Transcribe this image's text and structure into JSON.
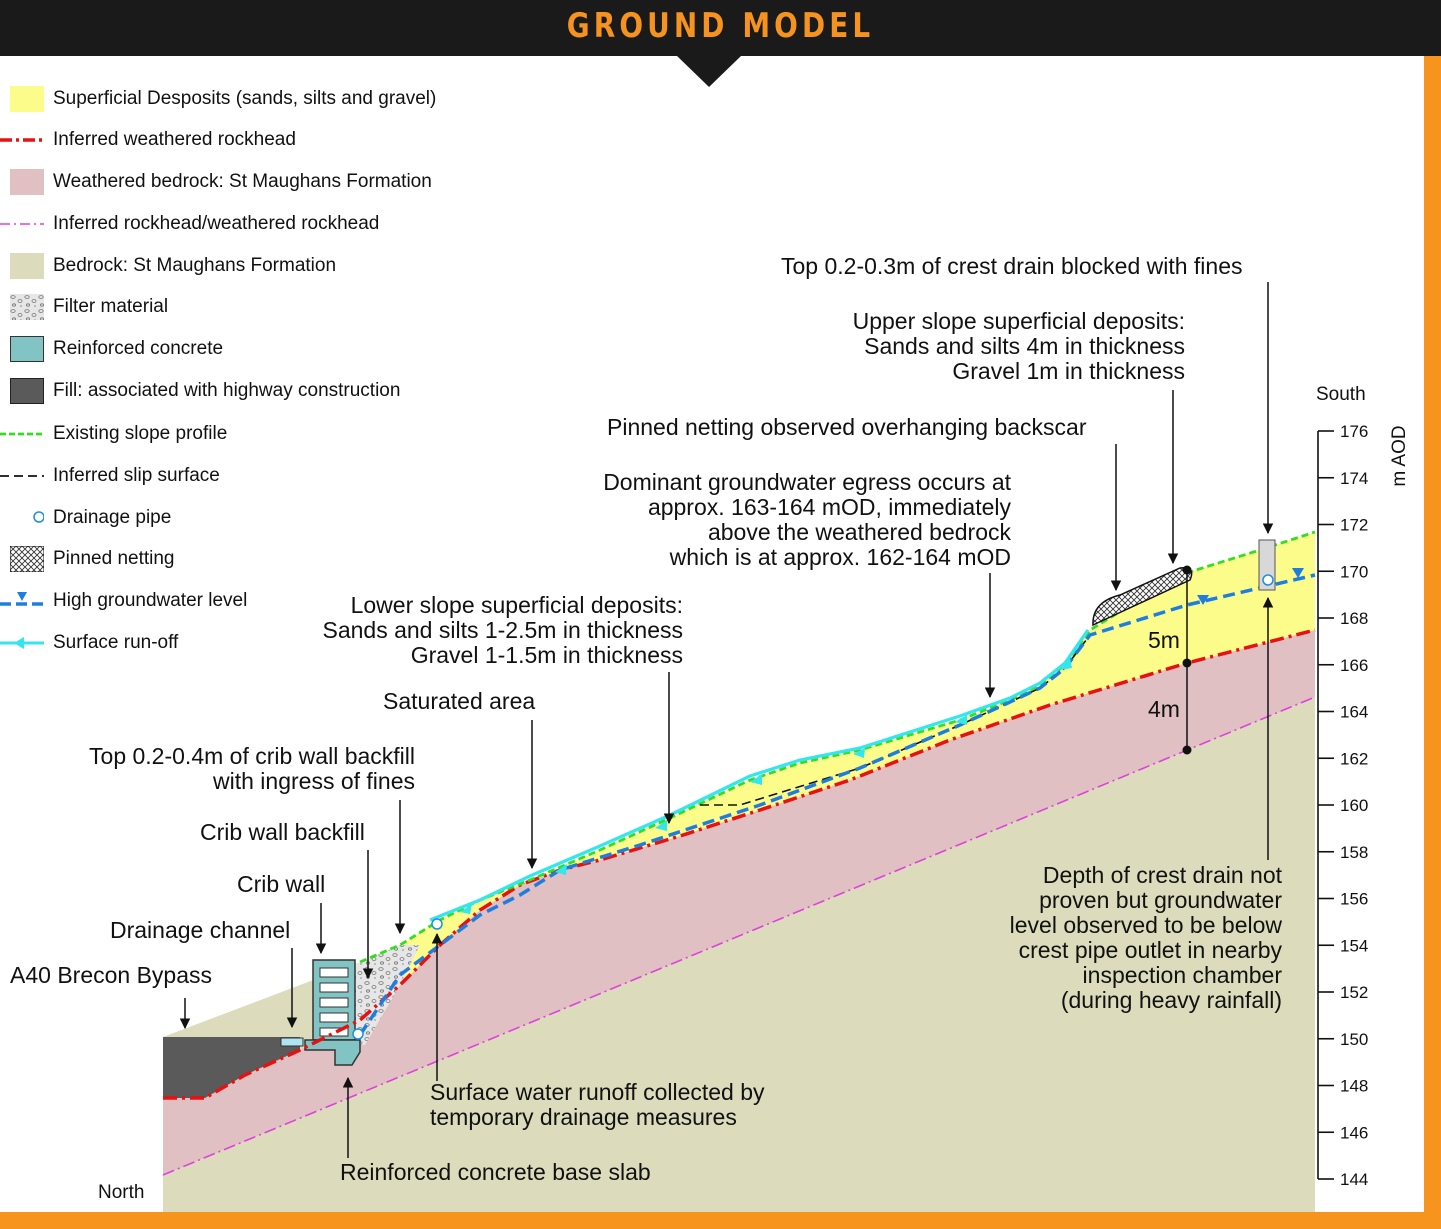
{
  "header": {
    "title": "GROUND MODEL"
  },
  "legend": [
    {
      "label": "Superficial Desposits (sands, silts and gravel)",
      "icon": "yellow-fill"
    },
    {
      "label": "Inferred weathered rockhead",
      "icon": "red-dash-dot-line"
    },
    {
      "label": "Weathered bedrock: St Maughans Formation",
      "icon": "pink-fill"
    },
    {
      "label": "Inferred rockhead/weathered rockhead",
      "icon": "magenta-dash-dot-line"
    },
    {
      "label": "Bedrock: St Maughans Formation",
      "icon": "beige-fill"
    },
    {
      "label": "Filter material",
      "icon": "gravel-pattern"
    },
    {
      "label": "Reinforced concrete",
      "icon": "teal-fill"
    },
    {
      "label": "Fill: associated with highway construction",
      "icon": "dark-grey-fill"
    },
    {
      "label": "Existing slope profile",
      "icon": "green-dashed-line"
    },
    {
      "label": "Inferred slip surface",
      "icon": "black-dashed-line"
    },
    {
      "label": "Drainage pipe",
      "icon": "blue-circle"
    },
    {
      "label": "Pinned netting",
      "icon": "crosshatch-pattern"
    },
    {
      "label": "High groundwater level",
      "icon": "blue-dashed-line-triangle"
    },
    {
      "label": "Surface run-off",
      "icon": "cyan-line-arrow"
    }
  ],
  "annotations": {
    "a40": "A40 Brecon Bypass",
    "drainage_channel": "Drainage channel",
    "crib_wall": "Crib wall",
    "crib_wall_backfill": "Crib wall backfill",
    "crib_top": [
      "Top 0.2-0.4m of crib wall backfill",
      "with ingress of fines"
    ],
    "saturated": "Saturated area",
    "lower_slope": [
      "Lower slope superficial deposits:",
      "Sands and silts 1-2.5m in thickness",
      "Gravel 1-1.5m in thickness"
    ],
    "dominant": [
      "Dominant groundwater egress occurs at",
      "approx. 163-164 mOD, immediately",
      "above the weathered bedrock",
      "which is at approx. 162-164 mOD"
    ],
    "pinned": "Pinned netting observed overhanging backscar",
    "upper_slope": [
      "Upper slope superficial deposits:",
      "Sands and silts 4m in thickness",
      "Gravel 1m in thickness"
    ],
    "crest_top": "Top 0.2-0.3m of crest drain blocked with fines",
    "surface_water": [
      "Surface water runoff collected by",
      "temporary drainage measures"
    ],
    "base_slab": "Reinforced concrete base slab",
    "crest_depth": [
      "Depth of crest drain not",
      "proven but groundwater",
      "level observed to be below",
      "crest pipe outlet in nearby",
      "inspection chamber",
      "(during heavy rainfall)"
    ],
    "five_m": "5m",
    "four_m": "4m",
    "north": "North",
    "south": "South"
  },
  "axis": {
    "label": "m AOD",
    "ticks": [
      "176",
      "174",
      "172",
      "170",
      "168",
      "166",
      "164",
      "162",
      "160",
      "158",
      "156",
      "154",
      "152",
      "150",
      "148",
      "146",
      "144"
    ]
  },
  "colors": {
    "superficial": "#fcfc8a",
    "weathered": "#e0c0c2",
    "bedrock": "#dcdcbc",
    "fill": "#5a5a5a",
    "concrete": "#82c4c4",
    "accent": "#f7941d"
  }
}
